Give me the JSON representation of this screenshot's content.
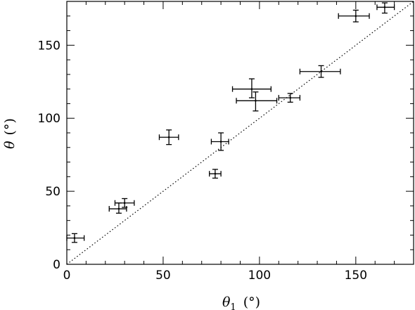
{
  "chart_data": {
    "type": "scatter",
    "title": "",
    "xlabel": "θ1 (°)",
    "ylabel": "θ (°)",
    "xlabel_parts": {
      "symbol": "θ",
      "subscript": "1",
      "unit": "(°)"
    },
    "ylabel_parts": {
      "symbol": "θ",
      "unit": "(°)"
    },
    "xlim": [
      0,
      180
    ],
    "ylim": [
      0,
      180
    ],
    "xticks": [
      0,
      50,
      100,
      150
    ],
    "yticks": [
      0,
      50,
      100,
      150
    ],
    "xtick_labels": [
      "0",
      "50",
      "100",
      "150"
    ],
    "ytick_labels": [
      "0",
      "50",
      "100",
      "150"
    ],
    "grid": false,
    "legend": "none",
    "reference_line": {
      "style": "dotted",
      "x": [
        0,
        180
      ],
      "y": [
        0,
        180
      ]
    },
    "points": [
      {
        "x": 4,
        "y": 18,
        "x_lo": 0,
        "x_hi": 9,
        "y_lo": 15,
        "y_hi": 21
      },
      {
        "x": 27,
        "y": 38,
        "x_lo": 22,
        "x_hi": 31,
        "y_lo": 35,
        "y_hi": 42
      },
      {
        "x": 30,
        "y": 42,
        "x_lo": 25,
        "x_hi": 35,
        "y_lo": 39,
        "y_hi": 45
      },
      {
        "x": 53,
        "y": 87,
        "x_lo": 48,
        "x_hi": 58,
        "y_lo": 82,
        "y_hi": 92
      },
      {
        "x": 77,
        "y": 62,
        "x_lo": 74,
        "x_hi": 80,
        "y_lo": 59,
        "y_hi": 65
      },
      {
        "x": 80,
        "y": 84,
        "x_lo": 75,
        "x_hi": 84,
        "y_lo": 78,
        "y_hi": 90
      },
      {
        "x": 96,
        "y": 120,
        "x_lo": 86,
        "x_hi": 106,
        "y_lo": 114,
        "y_hi": 127
      },
      {
        "x": 98,
        "y": 112,
        "x_lo": 88,
        "x_hi": 109,
        "y_lo": 105,
        "y_hi": 118
      },
      {
        "x": 116,
        "y": 114,
        "x_lo": 110,
        "x_hi": 121,
        "y_lo": 111,
        "y_hi": 117
      },
      {
        "x": 132,
        "y": 132,
        "x_lo": 121,
        "x_hi": 142,
        "y_lo": 128,
        "y_hi": 136
      },
      {
        "x": 150,
        "y": 170,
        "x_lo": 141,
        "x_hi": 157,
        "y_lo": 166,
        "y_hi": 174
      },
      {
        "x": 165,
        "y": 176,
        "x_lo": 161,
        "x_hi": 170,
        "y_lo": 172,
        "y_hi": 179
      }
    ]
  }
}
